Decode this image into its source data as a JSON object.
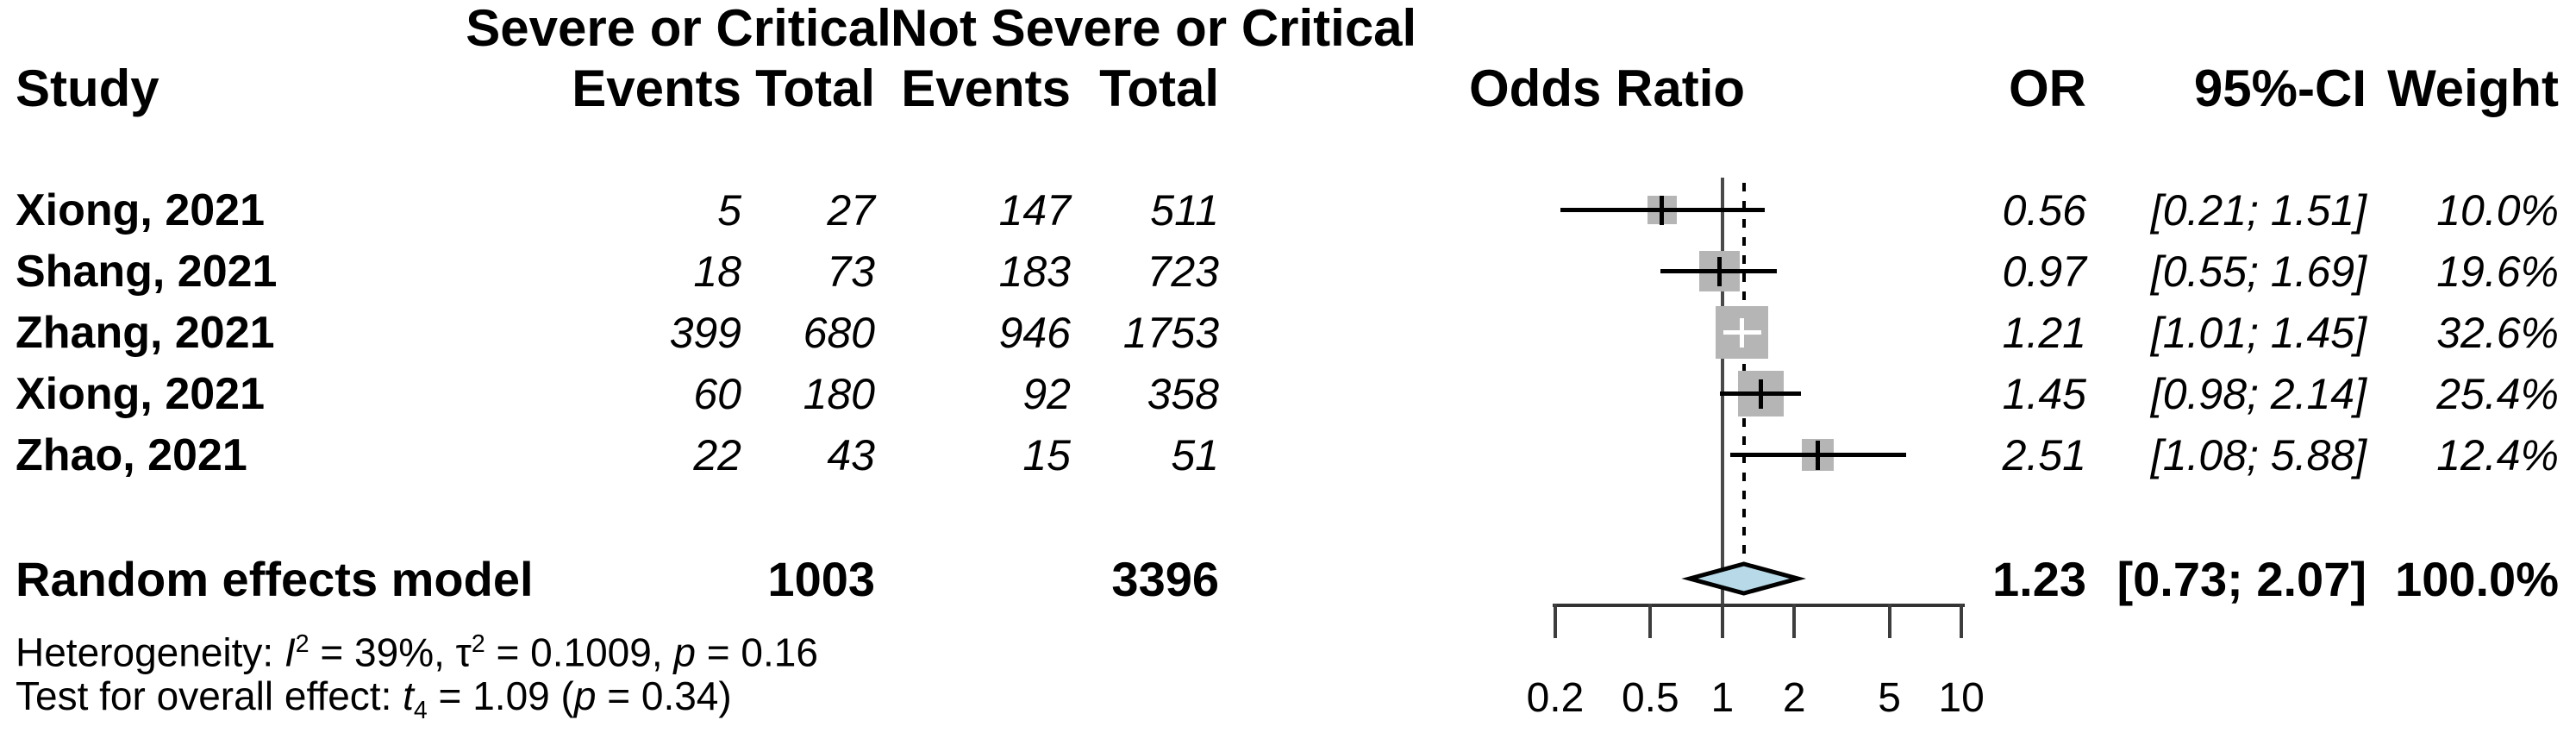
{
  "header": {
    "group1": "Severe or Critical",
    "group2": "Not Severe or Critical",
    "study": "Study",
    "events1": "Events",
    "total1": "Total",
    "events2": "Events",
    "total2": "Total",
    "odds_ratio": "Odds Ratio",
    "or": "OR",
    "ci": "95%-CI",
    "weight": "Weight"
  },
  "rows": [
    {
      "study": "Xiong, 2021",
      "e1": "5",
      "t1": "27",
      "e2": "147",
      "t2": "511",
      "or": "0.56",
      "ci": "[0.21; 1.51]",
      "weight": "10.0%"
    },
    {
      "study": "Shang, 2021",
      "e1": "18",
      "t1": "73",
      "e2": "183",
      "t2": "723",
      "or": "0.97",
      "ci": "[0.55; 1.69]",
      "weight": "19.6%"
    },
    {
      "study": "Zhang, 2021",
      "e1": "399",
      "t1": "680",
      "e2": "946",
      "t2": "1753",
      "or": "1.21",
      "ci": "[1.01; 1.45]",
      "weight": "32.6%"
    },
    {
      "study": "Xiong, 2021",
      "e1": "60",
      "t1": "180",
      "e2": "92",
      "t2": "358",
      "or": "1.45",
      "ci": "[0.98; 2.14]",
      "weight": "25.4%"
    },
    {
      "study": "Zhao, 2021",
      "e1": "22",
      "t1": "43",
      "e2": "15",
      "t2": "51",
      "or": "2.51",
      "ci": "[1.08; 5.88]",
      "weight": "12.4%"
    }
  ],
  "summary": {
    "label": "Random effects model",
    "total1": "1003",
    "total2": "3396",
    "or": "1.23",
    "ci": "[0.73; 2.07]",
    "weight": "100.0%"
  },
  "footnotes": {
    "heterogeneity": [
      {
        "t": "Heterogeneity: "
      },
      {
        "t": "I",
        "i": true
      },
      {
        "t": "2",
        "sup": true
      },
      {
        "t": " = 39%, "
      },
      {
        "t": "τ"
      },
      {
        "t": "2",
        "sup": true
      },
      {
        "t": " = 0.1009, "
      },
      {
        "t": "p",
        "i": true
      },
      {
        "t": " = 0.16"
      }
    ],
    "overall_effect": [
      {
        "t": "Test for overall effect: "
      },
      {
        "t": "t",
        "i": true
      },
      {
        "t": "4",
        "sub": true
      },
      {
        "t": " = 1.09 ("
      },
      {
        "t": "p",
        "i": true
      },
      {
        "t": " = 0.34)"
      }
    ]
  },
  "chart_data": {
    "type": "forest",
    "x_scale": "log",
    "x_ticks": [
      "0.2",
      "0.5",
      "1",
      "2",
      "5",
      "10"
    ],
    "x_tick_values": [
      0.2,
      0.5,
      1,
      2,
      5,
      10
    ],
    "ref_line_x": 1,
    "pooled_dashed_line_x": 1.23,
    "effect_measure": "Odds Ratio",
    "studies": [
      {
        "name": "Xiong, 2021",
        "events_severe": 5,
        "total_severe": 27,
        "events_not_severe": 147,
        "total_not_severe": 511,
        "or": 0.56,
        "ci_low": 0.21,
        "ci_high": 1.51,
        "weight_pct": 10.0
      },
      {
        "name": "Shang, 2021",
        "events_severe": 18,
        "total_severe": 73,
        "events_not_severe": 183,
        "total_not_severe": 723,
        "or": 0.97,
        "ci_low": 0.55,
        "ci_high": 1.69,
        "weight_pct": 19.6
      },
      {
        "name": "Zhang, 2021",
        "events_severe": 399,
        "total_severe": 680,
        "events_not_severe": 946,
        "total_not_severe": 1753,
        "or": 1.21,
        "ci_low": 1.01,
        "ci_high": 1.45,
        "weight_pct": 32.6
      },
      {
        "name": "Xiong, 2021",
        "events_severe": 60,
        "total_severe": 180,
        "events_not_severe": 92,
        "total_not_severe": 358,
        "or": 1.45,
        "ci_low": 0.98,
        "ci_high": 2.14,
        "weight_pct": 25.4
      },
      {
        "name": "Zhao, 2021",
        "events_severe": 22,
        "total_severe": 43,
        "events_not_severe": 15,
        "total_not_severe": 51,
        "or": 2.51,
        "ci_low": 1.08,
        "ci_high": 5.88,
        "weight_pct": 12.4
      }
    ],
    "pooled": {
      "model": "Random effects model",
      "or": 1.23,
      "ci_low": 0.73,
      "ci_high": 2.07,
      "weight_pct": 100.0,
      "total_severe": 1003,
      "total_not_severe": 3396
    },
    "heterogeneity": {
      "I2": "39%",
      "tau2": 0.1009,
      "p": 0.16
    },
    "overall_effect_test": {
      "statistic": "t4",
      "value": 1.09,
      "p": 0.34
    },
    "square_color": "#b5b5b5",
    "diamond_fill": "#b8dae8",
    "diamond_stroke": "#000000"
  }
}
